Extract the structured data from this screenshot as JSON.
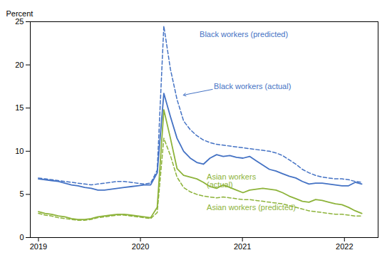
{
  "chart_data": {
    "type": "line",
    "ylabel": "Percent",
    "x": [
      2019,
      2019.0647,
      2019.1294,
      2019.1941,
      2019.2588,
      2019.3235,
      2019.3882,
      2019.4529,
      2019.5176,
      2019.5822,
      2019.6469,
      2019.7116,
      2019.7763,
      2019.841,
      2019.9057,
      2019.9704,
      2020.0351,
      2020.0998,
      2020.1645,
      2020.2292,
      2020.2939,
      2020.3586,
      2020.4233,
      2020.488,
      2020.5527,
      2020.6173,
      2020.682,
      2020.7467,
      2020.8114,
      2020.8761,
      2020.9408,
      2021.0055,
      2021.0702,
      2021.1349,
      2021.1996,
      2021.2643,
      2021.329,
      2021.3937,
      2021.4584,
      2021.5231,
      2021.5878,
      2021.6524,
      2021.7171,
      2021.7818,
      2021.8465,
      2021.9112,
      2021.9759,
      2022.0406,
      2022.1053,
      2022.17
    ],
    "xlim": [
      2018.92,
      2022.33
    ],
    "xticks": [
      2019,
      2020,
      2021,
      2022
    ],
    "ylim": [
      0,
      25
    ],
    "yticks": [
      0,
      5,
      10,
      15,
      20,
      25
    ],
    "grid": false,
    "series": [
      {
        "color": "#4472C4",
        "line_style": "solid",
        "values": [
          6.8,
          6.7,
          6.6,
          6.5,
          6.3,
          6.1,
          6.0,
          5.8,
          5.7,
          5.5,
          5.5,
          5.6,
          5.7,
          5.8,
          5.9,
          6.0,
          6.1,
          6.1,
          7.5,
          16.7,
          14.0,
          11.5,
          10.0,
          9.2,
          8.7,
          8.5,
          9.2,
          9.6,
          9.4,
          9.5,
          9.3,
          9.2,
          9.4,
          8.9,
          8.4,
          7.9,
          7.7,
          7.4,
          7.1,
          6.9,
          6.5,
          6.2,
          6.3,
          6.3,
          6.2,
          6.1,
          6.0,
          6.0,
          6.4,
          6.2
        ]
      },
      {
        "color": "#4472C4",
        "line_style": "dashed",
        "values": [
          6.9,
          6.8,
          6.7,
          6.6,
          6.5,
          6.4,
          6.3,
          6.2,
          6.1,
          6.2,
          6.3,
          6.4,
          6.5,
          6.5,
          6.4,
          6.3,
          6.2,
          6.3,
          7.8,
          24.5,
          19.5,
          16.0,
          13.5,
          12.5,
          11.8,
          11.3,
          11.0,
          10.8,
          10.7,
          10.6,
          10.5,
          10.4,
          10.3,
          10.2,
          10.1,
          10.0,
          9.8,
          9.5,
          9.0,
          8.5,
          7.9,
          7.5,
          7.2,
          7.0,
          6.9,
          6.8,
          6.8,
          6.7,
          6.5,
          6.4
        ]
      },
      {
        "color": "#8DB33A",
        "line_style": "solid",
        "values": [
          3.0,
          2.8,
          2.7,
          2.5,
          2.4,
          2.2,
          2.1,
          2.1,
          2.2,
          2.4,
          2.5,
          2.6,
          2.7,
          2.7,
          2.6,
          2.5,
          2.4,
          2.3,
          3.5,
          14.8,
          11.5,
          8.0,
          7.2,
          7.0,
          6.8,
          6.4,
          5.9,
          5.7,
          6.1,
          5.8,
          5.5,
          5.2,
          5.5,
          5.6,
          5.7,
          5.6,
          5.5,
          5.2,
          4.8,
          4.5,
          4.2,
          4.1,
          4.4,
          4.3,
          4.1,
          3.9,
          3.8,
          3.5,
          3.1,
          2.8
        ]
      },
      {
        "color": "#8DB33A",
        "line_style": "dashed",
        "values": [
          2.8,
          2.6,
          2.5,
          2.3,
          2.2,
          2.1,
          2.0,
          2.0,
          2.1,
          2.3,
          2.4,
          2.5,
          2.6,
          2.6,
          2.5,
          2.4,
          2.3,
          2.2,
          2.9,
          11.5,
          9.5,
          7.0,
          5.8,
          5.3,
          5.0,
          4.8,
          4.7,
          4.6,
          4.7,
          4.6,
          4.5,
          4.4,
          4.4,
          4.3,
          4.2,
          4.1,
          4.0,
          3.9,
          3.7,
          3.5,
          3.3,
          3.1,
          3.0,
          2.9,
          2.8,
          2.7,
          2.7,
          2.6,
          2.5,
          2.5
        ]
      }
    ],
    "annotations": [
      {
        "text": "Black workers (predicted)",
        "x": 2020.58,
        "y": 23.2,
        "color": "#4472C4"
      },
      {
        "text": "Black workers (actual)",
        "x": 2020.72,
        "y": 17.2,
        "color": "#4472C4",
        "arrow_to": [
          2020.42,
          16.5
        ]
      },
      {
        "text": "Asian workers\n(actual)",
        "x": 2020.65,
        "y": 7.4,
        "color": "#8DB33A"
      },
      {
        "text": "Asian workers (predicted)",
        "x": 2020.65,
        "y": 3.8,
        "color": "#8DB33A"
      }
    ]
  }
}
